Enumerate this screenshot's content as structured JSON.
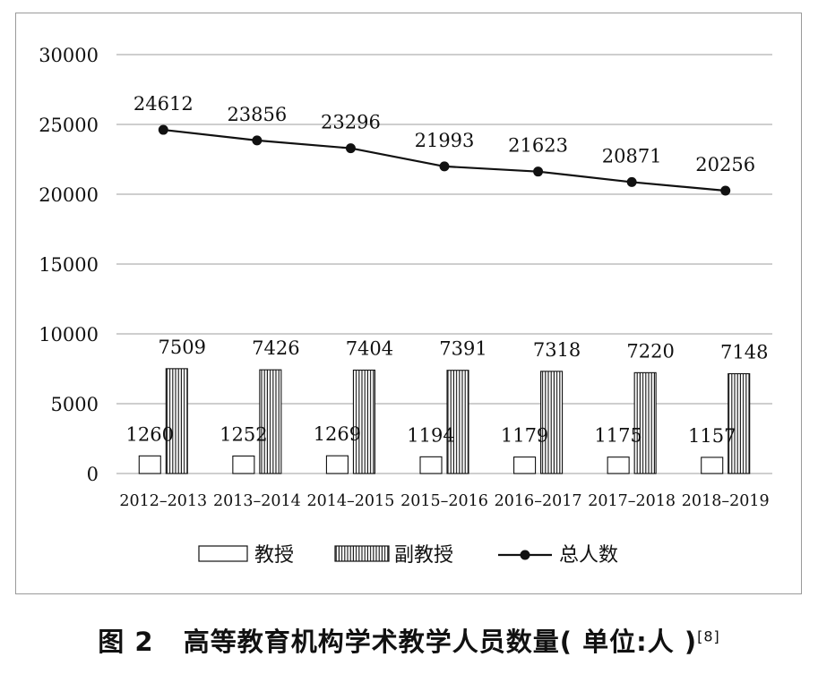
{
  "chart_data": {
    "type": "bar+line",
    "categories": [
      "2012–2013",
      "2013–2014",
      "2014–2015",
      "2015–2016",
      "2016–2017",
      "2017–2018",
      "2018–2019"
    ],
    "series": [
      {
        "name": "教授",
        "type": "bar",
        "pattern": "hollow",
        "values": [
          1260,
          1252,
          1269,
          1194,
          1179,
          1175,
          1157
        ],
        "labels": [
          "1260",
          "1252",
          "1269",
          "1194",
          "1179",
          "1175",
          "1157"
        ]
      },
      {
        "name": "副教授",
        "type": "bar",
        "pattern": "vertical-stripes",
        "values": [
          7509,
          7426,
          7404,
          7391,
          7318,
          7220,
          7148
        ],
        "labels": [
          "7509",
          "7426",
          "7404",
          "7391",
          "7318",
          "7220",
          "7148"
        ]
      },
      {
        "name": "总人数",
        "type": "line",
        "marker": "dot",
        "values": [
          24612,
          23856,
          23296,
          21993,
          21623,
          20871,
          20256
        ],
        "labels": [
          "24612",
          "23856",
          "23296",
          "21993",
          "21623",
          "20871",
          "20256"
        ]
      }
    ],
    "ylim": [
      0,
      30000
    ],
    "yticks": [
      "0",
      "5000",
      "10000",
      "15000",
      "20000",
      "25000",
      "30000"
    ],
    "grid": true,
    "legend_position": "bottom"
  },
  "caption": {
    "label": "图 2",
    "text": "高等教育机构学术教学人员数量( 单位:人 )",
    "ref": "[8]"
  },
  "colors": {
    "grid": "#bdbdbd",
    "ink": "#111111",
    "frame": "#9a9a9a"
  }
}
